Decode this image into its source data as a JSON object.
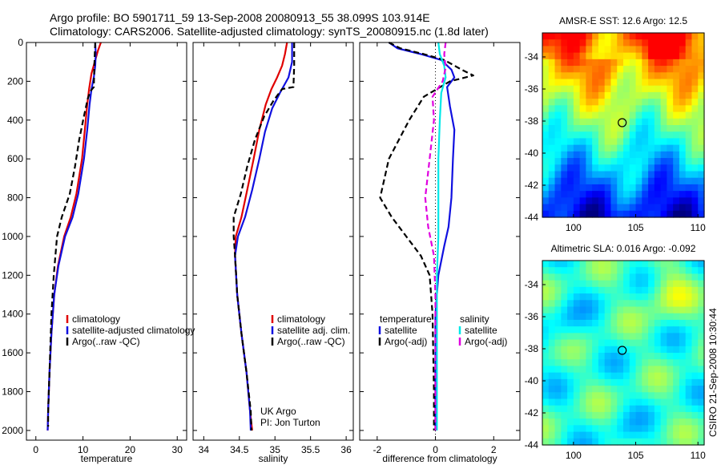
{
  "header": {
    "line1": "Argo profile: BO 5901711_59 13-Sep-2008 20080913_55 38.099S 103.914E",
    "line2": "Climatology: CARS2006. Satellite-adjusted climatology: synTS_20080915.nc (1.8d later)"
  },
  "side_text": "CSIRO 21-Sep-2008 10:30:44",
  "chart_data": [
    {
      "type": "line",
      "xlabel": "temperature",
      "xlim": [
        -2,
        32
      ],
      "xticks": [
        0,
        10,
        20,
        30
      ],
      "ylim": [
        2050,
        0
      ],
      "yticks": [
        0,
        200,
        400,
        600,
        800,
        1000,
        1200,
        1400,
        1600,
        1800,
        2000
      ],
      "legend": [
        {
          "label": "climatology",
          "color": "#e00000"
        },
        {
          "label": "satellite-adjusted climatology",
          "color": "#1010e0"
        },
        {
          "label": "Argo(..raw -QC)",
          "color": "#000000"
        }
      ],
      "series": [
        {
          "name": "climatology",
          "color": "#e00000",
          "dash": "solid",
          "points": [
            [
              13.8,
              0
            ],
            [
              13.2,
              40
            ],
            [
              12.5,
              100
            ],
            [
              11.8,
              160
            ],
            [
              11.3,
              240
            ],
            [
              10.9,
              320
            ],
            [
              10.4,
              450
            ],
            [
              9.8,
              600
            ],
            [
              8.6,
              780
            ],
            [
              7.4,
              900
            ],
            [
              6.0,
              1000
            ],
            [
              4.7,
              1150
            ],
            [
              3.9,
              1300
            ],
            [
              3.3,
              1500
            ],
            [
              2.9,
              1700
            ],
            [
              2.6,
              1900
            ],
            [
              2.5,
              2000
            ]
          ]
        },
        {
          "name": "satellite-adjusted climatology",
          "color": "#1010e0",
          "dash": "solid",
          "points": [
            [
              12.6,
              0
            ],
            [
              12.7,
              60
            ],
            [
              12.6,
              120
            ],
            [
              12.3,
              180
            ],
            [
              11.8,
              240
            ],
            [
              11.4,
              320
            ],
            [
              10.9,
              450
            ],
            [
              10.2,
              600
            ],
            [
              9.0,
              780
            ],
            [
              7.8,
              900
            ],
            [
              6.2,
              1000
            ],
            [
              4.8,
              1150
            ],
            [
              3.9,
              1300
            ],
            [
              3.3,
              1500
            ],
            [
              2.9,
              1700
            ],
            [
              2.6,
              1900
            ],
            [
              2.5,
              2000
            ]
          ]
        },
        {
          "name": "Argo(..raw -QC)",
          "color": "#000000",
          "dash": "dash",
          "points": [
            [
              12.6,
              0
            ],
            [
              12.5,
              60
            ],
            [
              12.4,
              130
            ],
            [
              12.3,
              230
            ],
            [
              11.6,
              250
            ],
            [
              11.0,
              290
            ],
            [
              10.2,
              380
            ],
            [
              9.2,
              500
            ],
            [
              8.3,
              640
            ],
            [
              7.2,
              780
            ],
            [
              5.5,
              900
            ],
            [
              4.5,
              1000
            ],
            [
              3.8,
              1200
            ],
            [
              3.3,
              1400
            ],
            [
              2.9,
              1700
            ],
            [
              2.6,
              1900
            ],
            [
              2.6,
              1980
            ]
          ]
        }
      ]
    },
    {
      "type": "line",
      "xlabel": "salinity",
      "xlim": [
        33.85,
        36.1
      ],
      "xticks": [
        34,
        34.5,
        35,
        35.5,
        36
      ],
      "ylim": [
        2050,
        0
      ],
      "legend": [
        {
          "label": "climatology",
          "color": "#e00000"
        },
        {
          "label": "satellite adj. clim.",
          "color": "#1010e0"
        },
        {
          "label": "Argo(..raw -QC)",
          "color": "#000000"
        }
      ],
      "annotations": [
        "UK Argo",
        "PI: Jon Turton"
      ],
      "series": [
        {
          "name": "climatology",
          "color": "#e00000",
          "dash": "solid",
          "points": [
            [
              35.17,
              0
            ],
            [
              35.14,
              60
            ],
            [
              35.1,
              120
            ],
            [
              35.03,
              180
            ],
            [
              34.95,
              240
            ],
            [
              34.87,
              320
            ],
            [
              34.78,
              450
            ],
            [
              34.7,
              600
            ],
            [
              34.61,
              760
            ],
            [
              34.53,
              900
            ],
            [
              34.45,
              1000
            ],
            [
              34.44,
              1100
            ],
            [
              34.47,
              1300
            ],
            [
              34.53,
              1500
            ],
            [
              34.6,
              1700
            ],
            [
              34.65,
              1900
            ],
            [
              34.68,
              2000
            ]
          ]
        },
        {
          "name": "satellite adj. clim.",
          "color": "#1010e0",
          "dash": "solid",
          "points": [
            [
              35.24,
              0
            ],
            [
              35.24,
              100
            ],
            [
              35.19,
              180
            ],
            [
              35.07,
              260
            ],
            [
              34.96,
              340
            ],
            [
              34.86,
              460
            ],
            [
              34.78,
              600
            ],
            [
              34.68,
              760
            ],
            [
              34.58,
              900
            ],
            [
              34.48,
              1000
            ],
            [
              34.44,
              1100
            ],
            [
              34.47,
              1300
            ],
            [
              34.53,
              1500
            ],
            [
              34.6,
              1700
            ],
            [
              34.65,
              1900
            ],
            [
              34.66,
              2000
            ]
          ]
        },
        {
          "name": "Argo(..raw -QC)",
          "color": "#000000",
          "dash": "dash",
          "points": [
            [
              35.27,
              0
            ],
            [
              35.27,
              120
            ],
            [
              35.26,
              230
            ],
            [
              35.1,
              240
            ],
            [
              34.98,
              300
            ],
            [
              34.85,
              380
            ],
            [
              34.72,
              500
            ],
            [
              34.61,
              640
            ],
            [
              34.52,
              780
            ],
            [
              34.42,
              900
            ],
            [
              34.42,
              1000
            ],
            [
              34.44,
              1100
            ],
            [
              34.47,
              1300
            ],
            [
              34.53,
              1500
            ],
            [
              34.6,
              1700
            ],
            [
              34.66,
              1900
            ],
            [
              34.67,
              2000
            ]
          ]
        }
      ]
    },
    {
      "type": "line",
      "xlabel": "difference from climatology",
      "xlim": [
        -2.6,
        2.9
      ],
      "xticks": [
        -2,
        0,
        2
      ],
      "ylim": [
        2050,
        0
      ],
      "legend": [
        {
          "label": "temperature",
          "color": null
        },
        {
          "label": "satellite",
          "color": "#1010e0"
        },
        {
          "label": "Argo(-adj)",
          "color": "#000000"
        },
        {
          "label": "salinity",
          "color": null
        },
        {
          "label": "satellite",
          "color": "#00e8e8"
        },
        {
          "label": "Argo(-adj)",
          "color": "#e000e0"
        }
      ],
      "series": [
        {
          "name": "temperature satellite",
          "color": "#1010e0",
          "dash": "solid",
          "points": [
            [
              -1.6,
              0
            ],
            [
              -1.3,
              30
            ],
            [
              -0.5,
              60
            ],
            [
              0.2,
              90
            ],
            [
              0.55,
              140
            ],
            [
              0.65,
              180
            ],
            [
              0.4,
              230
            ],
            [
              0.5,
              330
            ],
            [
              0.65,
              450
            ],
            [
              0.6,
              600
            ],
            [
              0.55,
              800
            ],
            [
              0.45,
              950
            ],
            [
              0.3,
              1050
            ],
            [
              0.1,
              1200
            ],
            [
              0.0,
              1400
            ],
            [
              0.0,
              2000
            ]
          ]
        },
        {
          "name": "temperature Argo(-adj)",
          "color": "#000000",
          "dash": "dash",
          "points": [
            [
              -1.6,
              0
            ],
            [
              -1.2,
              30
            ],
            [
              -0.4,
              60
            ],
            [
              0.3,
              90
            ],
            [
              0.9,
              140
            ],
            [
              1.3,
              170
            ],
            [
              0.5,
              200
            ],
            [
              -0.4,
              280
            ],
            [
              -0.9,
              400
            ],
            [
              -1.6,
              600
            ],
            [
              -1.9,
              800
            ],
            [
              -1.5,
              900
            ],
            [
              -1.0,
              1000
            ],
            [
              -0.5,
              1100
            ],
            [
              -0.2,
              1200
            ],
            [
              -0.1,
              1400
            ],
            [
              -0.05,
              1800
            ],
            [
              -0.05,
              2000
            ]
          ]
        },
        {
          "name": "salinity satellite",
          "color": "#00e8e8",
          "dash": "solid",
          "points": [
            [
              0.1,
              0
            ],
            [
              0.15,
              60
            ],
            [
              0.3,
              120
            ],
            [
              0.35,
              180
            ],
            [
              0.2,
              260
            ],
            [
              0.15,
              400
            ],
            [
              0.1,
              600
            ],
            [
              0.1,
              800
            ],
            [
              0.1,
              1000
            ],
            [
              0.05,
              1200
            ],
            [
              0.05,
              1600
            ],
            [
              0.05,
              2000
            ]
          ]
        },
        {
          "name": "salinity Argo(-adj)",
          "color": "#e000e0",
          "dash": "dash",
          "points": [
            [
              0.35,
              0
            ],
            [
              0.3,
              60
            ],
            [
              0.35,
              130
            ],
            [
              0.25,
              200
            ],
            [
              -0.1,
              280
            ],
            [
              -0.05,
              400
            ],
            [
              -0.2,
              600
            ],
            [
              -0.35,
              800
            ],
            [
              -0.25,
              950
            ],
            [
              -0.05,
              1100
            ],
            [
              0.0,
              1300
            ],
            [
              0.0,
              2000
            ]
          ]
        }
      ]
    },
    {
      "type": "heatmap",
      "title": "AMSR-E SST: 12.6 Argo: 12.5",
      "xlim": [
        97.5,
        110.5
      ],
      "ylim": [
        -44,
        -32.5
      ],
      "xticks": [
        100,
        105,
        110
      ],
      "yticks": [
        -34,
        -36,
        -38,
        -40,
        -42,
        -44
      ],
      "marker": {
        "lon": 103.914,
        "lat": -38.099
      },
      "colormap": [
        "#000080",
        "#0000ff",
        "#0080ff",
        "#00ffff",
        "#80ff80",
        "#ffff00",
        "#ff8000",
        "#ff0000"
      ],
      "field": "sst"
    },
    {
      "type": "heatmap",
      "title": "Altimetric SLA: 0.016 Argo: -0.092",
      "xlim": [
        97.5,
        110.5
      ],
      "ylim": [
        -44,
        -32.5
      ],
      "xticks": [
        100,
        105,
        110
      ],
      "yticks": [
        -34,
        -36,
        -38,
        -40,
        -42,
        -44
      ],
      "marker": {
        "lon": 103.914,
        "lat": -38.099
      },
      "colormap": [
        "#000080",
        "#0000ff",
        "#0080ff",
        "#00ffff",
        "#80ff80",
        "#ffff00",
        "#ff8000",
        "#ff0000"
      ],
      "field": "sla"
    }
  ]
}
